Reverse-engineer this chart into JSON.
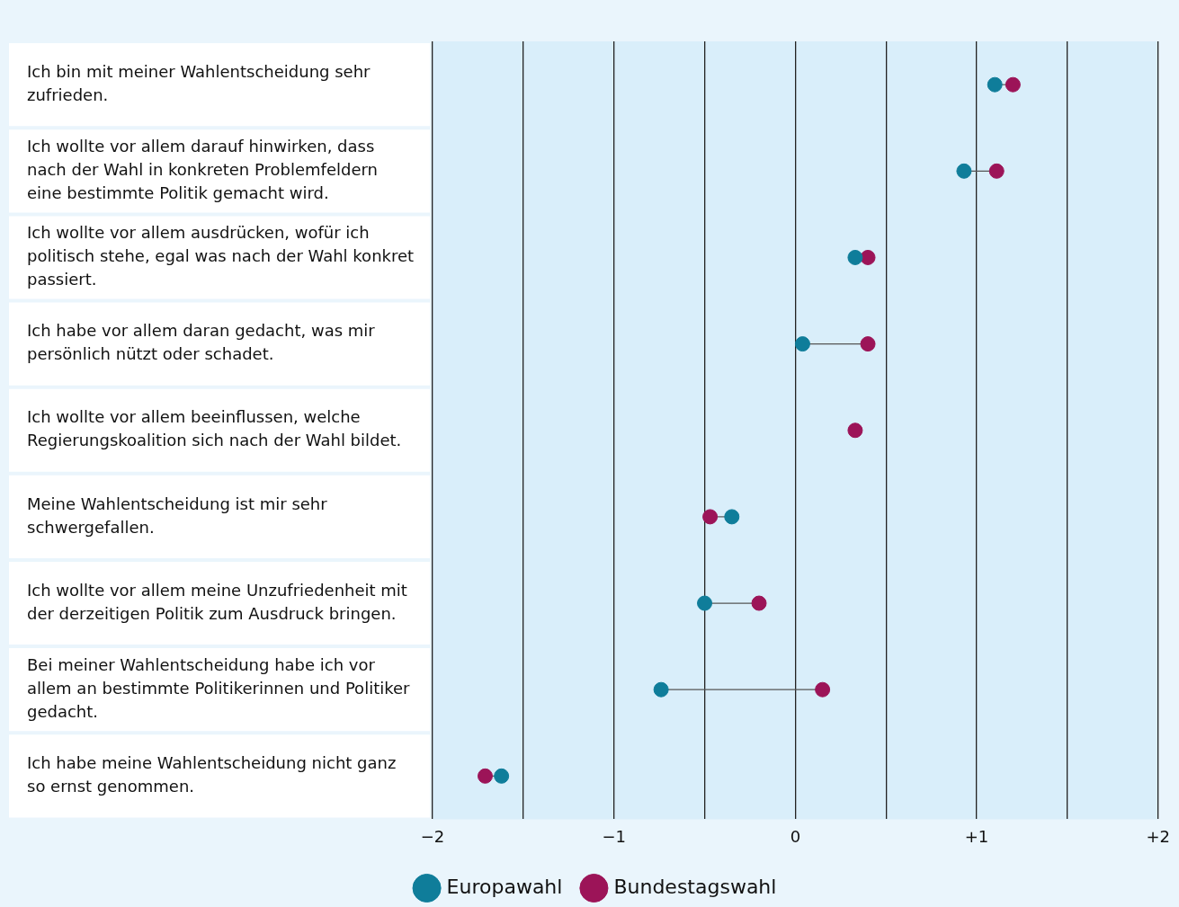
{
  "chart_data": {
    "type": "scatter",
    "orientation": "horizontal",
    "categories": [
      "Ich bin mit meiner Wahlentscheidung sehr zufrieden.",
      "Ich wollte vor allem darauf hinwirken, dass nach der Wahl in konkreten Problemfeldern eine bestimmte Politik gemacht wird.",
      "Ich wollte vor allem ausdrücken, wofür ich politisch stehe, egal was nach der Wahl konkret passiert.",
      "Ich habe vor allem daran gedacht, was mir persönlich nützt oder schadet.",
      "Ich wollte vor allem beeinflussen, welche Regierungskoalition sich nach der Wahl bildet.",
      "Meine Wahlentscheidung ist mir sehr schwergefallen.",
      "Ich wollte vor allem meine Unzufriedenheit mit der derzeitigen Politik zum Ausdruck bringen.",
      "Bei meiner Wahlentscheidung habe ich vor allem an bestimmte Politikerinnen und Politiker gedacht.",
      "Ich habe meine Wahlentscheidung nicht ganz so ernst genommen."
    ],
    "series": [
      {
        "name": "Europawahl",
        "color": "#0f7d9a",
        "values": [
          1.1,
          0.93,
          0.33,
          0.04,
          null,
          -0.35,
          -0.5,
          -0.74,
          -1.62
        ]
      },
      {
        "name": "Bundestagswahl",
        "color": "#9c1458",
        "values": [
          1.2,
          1.11,
          0.4,
          0.4,
          0.33,
          -0.47,
          -0.2,
          0.15,
          -1.71
        ]
      }
    ],
    "xlim": [
      -2,
      2
    ],
    "xticks": [
      {
        "value": -2,
        "label": "−2"
      },
      {
        "value": -1.5,
        "label": null
      },
      {
        "value": -1,
        "label": "−1"
      },
      {
        "value": -0.5,
        "label": null
      },
      0,
      {
        "value": 0.5,
        "label": null
      },
      {
        "value": 1,
        "label": "+1"
      },
      {
        "value": 1.5,
        "label": null
      },
      {
        "value": 2,
        "label": "+2"
      }
    ],
    "grid": "x",
    "legend": "bottom",
    "marker": "circle"
  }
}
